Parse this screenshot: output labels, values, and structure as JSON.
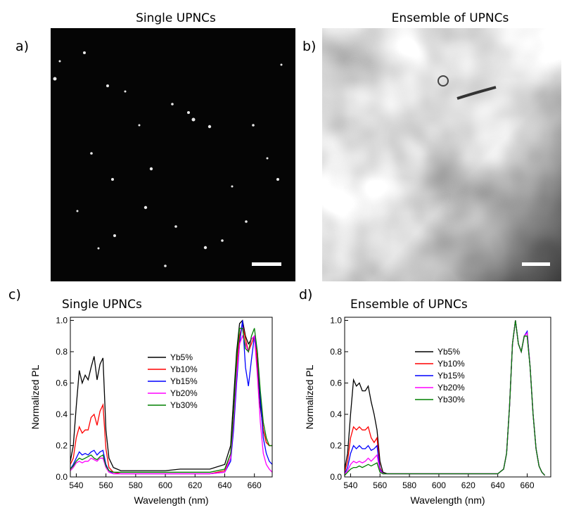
{
  "panels": [
    {
      "label": "a)",
      "title": "Single UPNCs"
    },
    {
      "label": "b)",
      "title": "Ensemble of UPNCs"
    }
  ],
  "chart_data": [
    {
      "type": "line",
      "panel_label": "c)",
      "title": "Single UPNCs",
      "x_label": "Wavelength (nm)",
      "y_label": "Normalized PL",
      "xlim": [
        536,
        672
      ],
      "ylim": [
        0,
        1.02
      ],
      "xticks": [
        540,
        560,
        580,
        600,
        620,
        640,
        660
      ],
      "yticks": [
        {
          "value": 0,
          "label": "0.0"
        },
        0.2,
        0.4,
        0.6,
        0.8,
        {
          "value": 1,
          "label": "1.0"
        }
      ],
      "legend": "center",
      "x": [
        536,
        538,
        540,
        542,
        544,
        546,
        548,
        550,
        552,
        554,
        556,
        558,
        560,
        562,
        565,
        570,
        580,
        590,
        600,
        610,
        620,
        630,
        640,
        644,
        646,
        648,
        650,
        652,
        654,
        656,
        658,
        660,
        662,
        664,
        666,
        668,
        670,
        672
      ],
      "series": [
        {
          "name": "Yb5%",
          "color": "#000000",
          "values": [
            0.1,
            0.2,
            0.45,
            0.68,
            0.6,
            0.65,
            0.62,
            0.7,
            0.77,
            0.62,
            0.72,
            0.76,
            0.3,
            0.12,
            0.06,
            0.04,
            0.04,
            0.04,
            0.04,
            0.05,
            0.05,
            0.05,
            0.08,
            0.2,
            0.5,
            0.8,
            0.98,
            1.0,
            0.9,
            0.85,
            0.88,
            0.9,
            0.7,
            0.45,
            0.3,
            0.22,
            0.2,
            0.2
          ]
        },
        {
          "name": "Yb10%",
          "color": "#ff0000",
          "values": [
            0.08,
            0.12,
            0.25,
            0.32,
            0.28,
            0.3,
            0.3,
            0.38,
            0.4,
            0.33,
            0.42,
            0.46,
            0.18,
            0.06,
            0.03,
            0.02,
            0.02,
            0.02,
            0.02,
            0.02,
            0.02,
            0.02,
            0.04,
            0.15,
            0.4,
            0.7,
            0.9,
            0.98,
            0.88,
            0.8,
            0.85,
            0.9,
            0.75,
            0.5,
            0.3,
            0.22,
            0.2,
            0.2
          ]
        },
        {
          "name": "Yb15%",
          "color": "#0000ff",
          "values": [
            0.05,
            0.08,
            0.12,
            0.16,
            0.14,
            0.15,
            0.14,
            0.16,
            0.17,
            0.14,
            0.16,
            0.17,
            0.08,
            0.04,
            0.02,
            0.02,
            0.02,
            0.02,
            0.02,
            0.02,
            0.02,
            0.02,
            0.03,
            0.1,
            0.3,
            0.6,
            0.85,
            1.0,
            0.7,
            0.58,
            0.75,
            0.9,
            0.8,
            0.5,
            0.25,
            0.15,
            0.1,
            0.08
          ]
        },
        {
          "name": "Yb20%",
          "color": "#ff00ff",
          "values": [
            0.04,
            0.06,
            0.09,
            0.1,
            0.09,
            0.1,
            0.1,
            0.12,
            0.11,
            0.1,
            0.12,
            0.12,
            0.06,
            0.03,
            0.02,
            0.02,
            0.02,
            0.02,
            0.02,
            0.02,
            0.02,
            0.02,
            0.03,
            0.12,
            0.35,
            0.65,
            0.85,
            0.9,
            0.85,
            0.8,
            0.88,
            0.9,
            0.65,
            0.35,
            0.15,
            0.08,
            0.05,
            0.03
          ]
        },
        {
          "name": "Yb30%",
          "color": "#008000",
          "values": [
            0.05,
            0.07,
            0.1,
            0.12,
            0.11,
            0.12,
            0.13,
            0.14,
            0.12,
            0.11,
            0.13,
            0.14,
            0.07,
            0.04,
            0.03,
            0.03,
            0.03,
            0.03,
            0.03,
            0.03,
            0.03,
            0.03,
            0.05,
            0.15,
            0.4,
            0.75,
            0.95,
            0.95,
            0.82,
            0.8,
            0.9,
            0.95,
            0.8,
            0.55,
            0.35,
            0.25,
            0.2,
            0.2
          ]
        }
      ]
    },
    {
      "type": "line",
      "panel_label": "d)",
      "title": "Ensemble of UPNCs",
      "x_label": "Wavelength (nm)",
      "y_label": "Normalized PL",
      "xlim": [
        536,
        676
      ],
      "ylim": [
        0,
        1.02
      ],
      "xticks": [
        540,
        560,
        580,
        600,
        620,
        640,
        660
      ],
      "yticks": [
        {
          "value": 0,
          "label": "0.0"
        },
        0.2,
        0.4,
        0.6,
        0.8,
        {
          "value": 1,
          "label": "1.0"
        }
      ],
      "legend": "center",
      "x": [
        536,
        538,
        540,
        542,
        544,
        546,
        548,
        550,
        552,
        554,
        556,
        558,
        560,
        562,
        565,
        570,
        580,
        590,
        600,
        610,
        620,
        630,
        640,
        644,
        646,
        648,
        650,
        652,
        654,
        656,
        658,
        660,
        662,
        664,
        666,
        668,
        670,
        672
      ],
      "series": [
        {
          "name": "Yb5%",
          "color": "#000000",
          "values": [
            0.05,
            0.15,
            0.4,
            0.62,
            0.58,
            0.6,
            0.55,
            0.55,
            0.58,
            0.48,
            0.4,
            0.3,
            0.1,
            0.03,
            0.02,
            0.02,
            0.02,
            0.02,
            0.02,
            0.02,
            0.02,
            0.02,
            0.02,
            0.05,
            0.15,
            0.45,
            0.85,
            1.0,
            0.85,
            0.8,
            0.9,
            0.9,
            0.7,
            0.4,
            0.18,
            0.07,
            0.03,
            0.01
          ]
        },
        {
          "name": "Yb10%",
          "color": "#ff0000",
          "values": [
            0.03,
            0.1,
            0.25,
            0.32,
            0.3,
            0.32,
            0.3,
            0.3,
            0.32,
            0.25,
            0.22,
            0.25,
            0.06,
            0.02,
            0.02,
            0.02,
            0.02,
            0.02,
            0.02,
            0.02,
            0.02,
            0.02,
            0.02,
            0.05,
            0.15,
            0.45,
            0.85,
            1.0,
            0.85,
            0.8,
            0.9,
            0.92,
            0.7,
            0.4,
            0.18,
            0.07,
            0.03,
            0.01
          ]
        },
        {
          "name": "Yb15%",
          "color": "#0000ff",
          "values": [
            0.02,
            0.06,
            0.15,
            0.2,
            0.18,
            0.2,
            0.18,
            0.18,
            0.2,
            0.17,
            0.18,
            0.2,
            0.05,
            0.02,
            0.02,
            0.02,
            0.02,
            0.02,
            0.02,
            0.02,
            0.02,
            0.02,
            0.02,
            0.05,
            0.15,
            0.45,
            0.85,
            1.0,
            0.85,
            0.8,
            0.9,
            0.93,
            0.7,
            0.4,
            0.18,
            0.07,
            0.03,
            0.01
          ]
        },
        {
          "name": "Yb20%",
          "color": "#ff00ff",
          "values": [
            0.02,
            0.04,
            0.08,
            0.1,
            0.09,
            0.1,
            0.09,
            0.1,
            0.12,
            0.1,
            0.12,
            0.14,
            0.04,
            0.02,
            0.02,
            0.02,
            0.02,
            0.02,
            0.02,
            0.02,
            0.02,
            0.02,
            0.02,
            0.05,
            0.15,
            0.45,
            0.85,
            1.0,
            0.85,
            0.8,
            0.9,
            0.92,
            0.7,
            0.4,
            0.18,
            0.07,
            0.03,
            0.01
          ]
        },
        {
          "name": "Yb30%",
          "color": "#008000",
          "values": [
            0.01,
            0.03,
            0.05,
            0.06,
            0.06,
            0.07,
            0.06,
            0.07,
            0.08,
            0.07,
            0.08,
            0.09,
            0.03,
            0.02,
            0.02,
            0.02,
            0.02,
            0.02,
            0.02,
            0.02,
            0.02,
            0.02,
            0.02,
            0.05,
            0.15,
            0.45,
            0.85,
            1.0,
            0.85,
            0.8,
            0.9,
            0.9,
            0.7,
            0.4,
            0.18,
            0.07,
            0.03,
            0.01
          ]
        }
      ]
    }
  ]
}
